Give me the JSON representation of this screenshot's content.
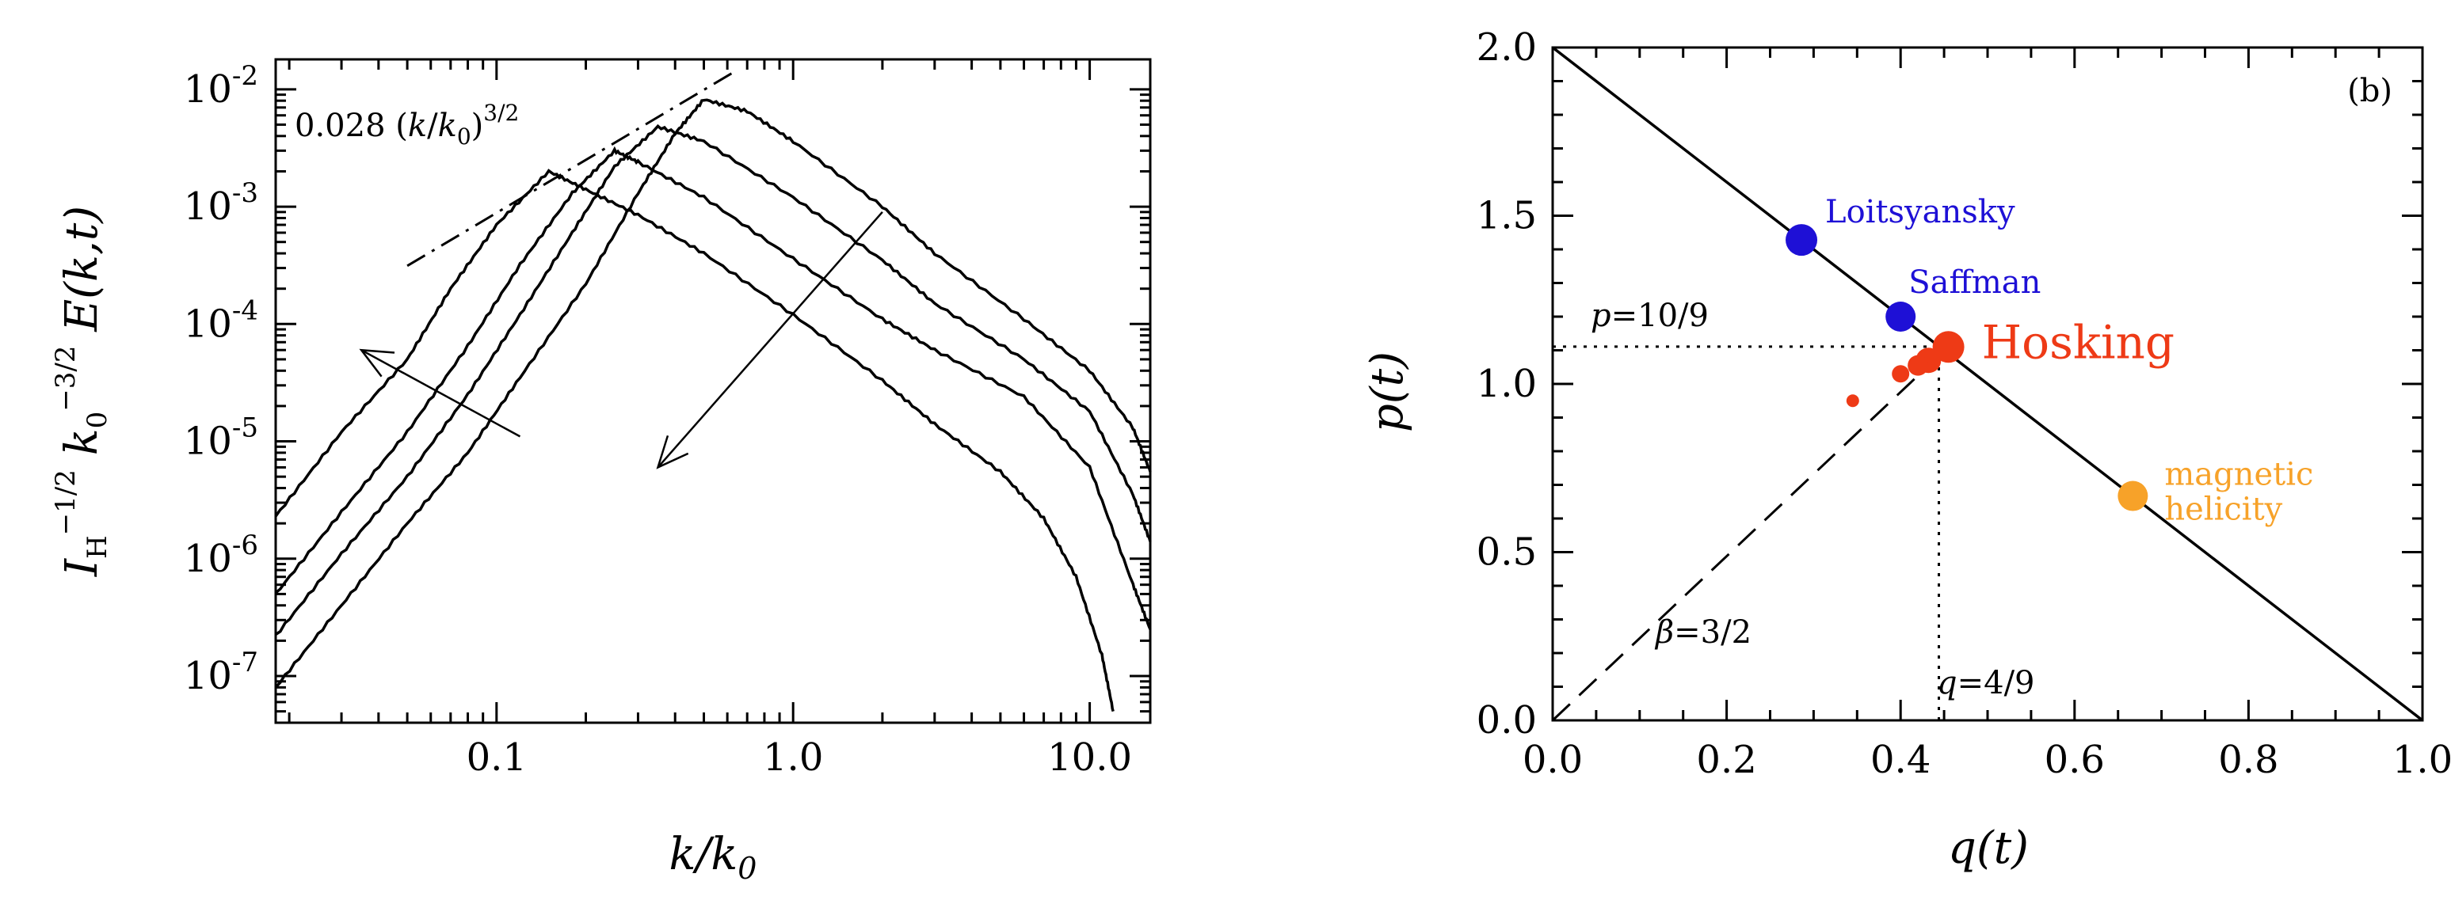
{
  "chart_data": [
    {
      "type": "line",
      "panel": "a",
      "xlabel": "k/k₀",
      "ylabel": "I_H^{-1/2} k₀^{-3/2} E(k,t)",
      "x_scale": "log",
      "y_scale": "log",
      "xlim": [
        0.018,
        16
      ],
      "ylim": [
        4e-08,
        0.018
      ],
      "xticks": [
        {
          "value": 0.1,
          "label": "0.1"
        },
        {
          "value": 1.0,
          "label": "1.0"
        },
        {
          "value": 10.0,
          "label": "10.0"
        }
      ],
      "yticks": [
        {
          "value": 1e-07,
          "exp": "-7"
        },
        {
          "value": 1e-06,
          "exp": "-6"
        },
        {
          "value": 1e-05,
          "exp": "-5"
        },
        {
          "value": 0.0001,
          "exp": "-4"
        },
        {
          "value": 0.001,
          "exp": "-3"
        },
        {
          "value": 0.01,
          "exp": "-2"
        }
      ],
      "tick_base": "10",
      "series": [
        {
          "points": [
            [
              0.018,
              2.3e-06
            ],
            [
              0.03,
              1.2e-05
            ],
            [
              0.05,
              5e-05
            ],
            [
              0.07,
              0.0002
            ],
            [
              0.1,
              0.0007
            ],
            [
              0.15,
              0.002
            ],
            [
              0.2,
              0.0014
            ],
            [
              0.3,
              0.00085
            ],
            [
              0.5,
              0.0004
            ],
            [
              1.0,
              0.00012
            ],
            [
              2.0,
              3.3e-05
            ],
            [
              3.0,
              1.4e-05
            ],
            [
              5.0,
              5.5e-06
            ],
            [
              7.0,
              2.2e-06
            ],
            [
              9.0,
              7e-07
            ],
            [
              11.0,
              1.5e-07
            ],
            [
              12.0,
              5e-08
            ]
          ]
        },
        {
          "points": [
            [
              0.018,
              5e-07
            ],
            [
              0.03,
              2.5e-06
            ],
            [
              0.05,
              1.2e-05
            ],
            [
              0.08,
              6.5e-05
            ],
            [
              0.12,
              0.00032
            ],
            [
              0.18,
              0.0013
            ],
            [
              0.25,
              0.003
            ],
            [
              0.3,
              0.0024
            ],
            [
              0.5,
              0.0012
            ],
            [
              1.0,
              0.00036
            ],
            [
              2.0,
              0.00011
            ],
            [
              3.0,
              6e-05
            ],
            [
              6.0,
              2.4e-05
            ],
            [
              10.0,
              6e-06
            ],
            [
              14.0,
              6e-07
            ],
            [
              16.0,
              2.5e-07
            ]
          ]
        },
        {
          "points": [
            [
              0.018,
              2.2e-07
            ],
            [
              0.03,
              1.1e-06
            ],
            [
              0.05,
              5e-06
            ],
            [
              0.08,
              2.5e-05
            ],
            [
              0.12,
              0.00012
            ],
            [
              0.18,
              0.0006
            ],
            [
              0.25,
              0.0022
            ],
            [
              0.35,
              0.0048
            ],
            [
              0.5,
              0.0036
            ],
            [
              1.0,
              0.0012
            ],
            [
              2.0,
              0.00035
            ],
            [
              3.0,
              0.00015
            ],
            [
              6.0,
              5e-05
            ],
            [
              10.0,
              1.8e-05
            ],
            [
              14.0,
              3.5e-06
            ],
            [
              16.0,
              1.4e-06
            ]
          ]
        },
        {
          "points": [
            [
              0.018,
              8e-08
            ],
            [
              0.03,
              4e-07
            ],
            [
              0.05,
              2e-06
            ],
            [
              0.08,
              8e-06
            ],
            [
              0.12,
              3.5e-05
            ],
            [
              0.2,
              0.00022
            ],
            [
              0.3,
              0.0013
            ],
            [
              0.4,
              0.0042
            ],
            [
              0.5,
              0.0082
            ],
            [
              0.7,
              0.0065
            ],
            [
              1.0,
              0.0036
            ],
            [
              2.0,
              0.001
            ],
            [
              3.0,
              0.0004
            ],
            [
              6.0,
              0.00011
            ],
            [
              10.0,
              4e-05
            ],
            [
              14.0,
              1.3e-05
            ],
            [
              16.0,
              5.5e-06
            ]
          ]
        }
      ],
      "reference_line": {
        "label": "0.028 (k/k₀)^{3/2}",
        "coef": 0.028,
        "slope": 1.5,
        "x_from": 0.05,
        "x_to": 0.62
      },
      "arrows": [
        {
          "from": [
            0.12,
            1.1e-05
          ],
          "to": [
            0.035,
            6e-05
          ]
        },
        {
          "from": [
            2.0,
            0.0009
          ],
          "to": [
            0.35,
            6e-06
          ]
        }
      ]
    },
    {
      "type": "scatter",
      "panel": "b",
      "tag": "(b)",
      "xlabel": "q(t)",
      "ylabel": "p(t)",
      "xlim": [
        0.0,
        1.0
      ],
      "ylim": [
        0.0,
        2.0
      ],
      "xticks": [
        0.0,
        0.2,
        0.4,
        0.6,
        0.8,
        1.0
      ],
      "yticks": [
        0.0,
        0.5,
        1.0,
        1.5,
        2.0
      ],
      "x_tick_labels": [
        "0.0",
        "0.2",
        "0.4",
        "0.6",
        "0.8",
        "1.0"
      ],
      "y_tick_labels": [
        "0.0",
        "0.5",
        "1.0",
        "1.5",
        "2.0"
      ],
      "solid_line": {
        "x": [
          0.0,
          1.0
        ],
        "y": [
          2.0,
          0.0
        ]
      },
      "dashed_line": {
        "label": "β=3/2",
        "x": [
          0.0,
          0.455
        ],
        "y": [
          0.0,
          1.11
        ]
      },
      "guide_p": {
        "label": "p=10/9",
        "value": 1.111
      },
      "guide_q": {
        "label": "q=4/9",
        "value": 0.444
      },
      "points": [
        {
          "name": "Loitsyansky",
          "label": "Loitsyansky",
          "q": 0.286,
          "p": 1.428,
          "color": "#1e10d6",
          "size": 20
        },
        {
          "name": "Saffman",
          "label": "Saffman",
          "q": 0.4,
          "p": 1.2,
          "color": "#1e10d6",
          "size": 19
        },
        {
          "name": "Hosking",
          "label": "Hosking",
          "q": 0.455,
          "p": 1.11,
          "color": "#ee3a16",
          "size": 20
        },
        {
          "name": "Hosking-run-1",
          "q": 0.432,
          "p": 1.07,
          "color": "#ee3a16",
          "size": 16
        },
        {
          "name": "Hosking-run-2",
          "q": 0.42,
          "p": 1.055,
          "color": "#ee3a16",
          "size": 13
        },
        {
          "name": "Hosking-run-3",
          "q": 0.4,
          "p": 1.03,
          "color": "#ee3a16",
          "size": 11
        },
        {
          "name": "Hosking-run-4",
          "q": 0.345,
          "p": 0.95,
          "color": "#ee3a16",
          "size": 8
        },
        {
          "name": "magnetic-helicity",
          "label": "magnetic",
          "label2": "helicity",
          "q": 0.667,
          "p": 0.667,
          "color": "#f7a229",
          "size": 19
        }
      ]
    }
  ]
}
